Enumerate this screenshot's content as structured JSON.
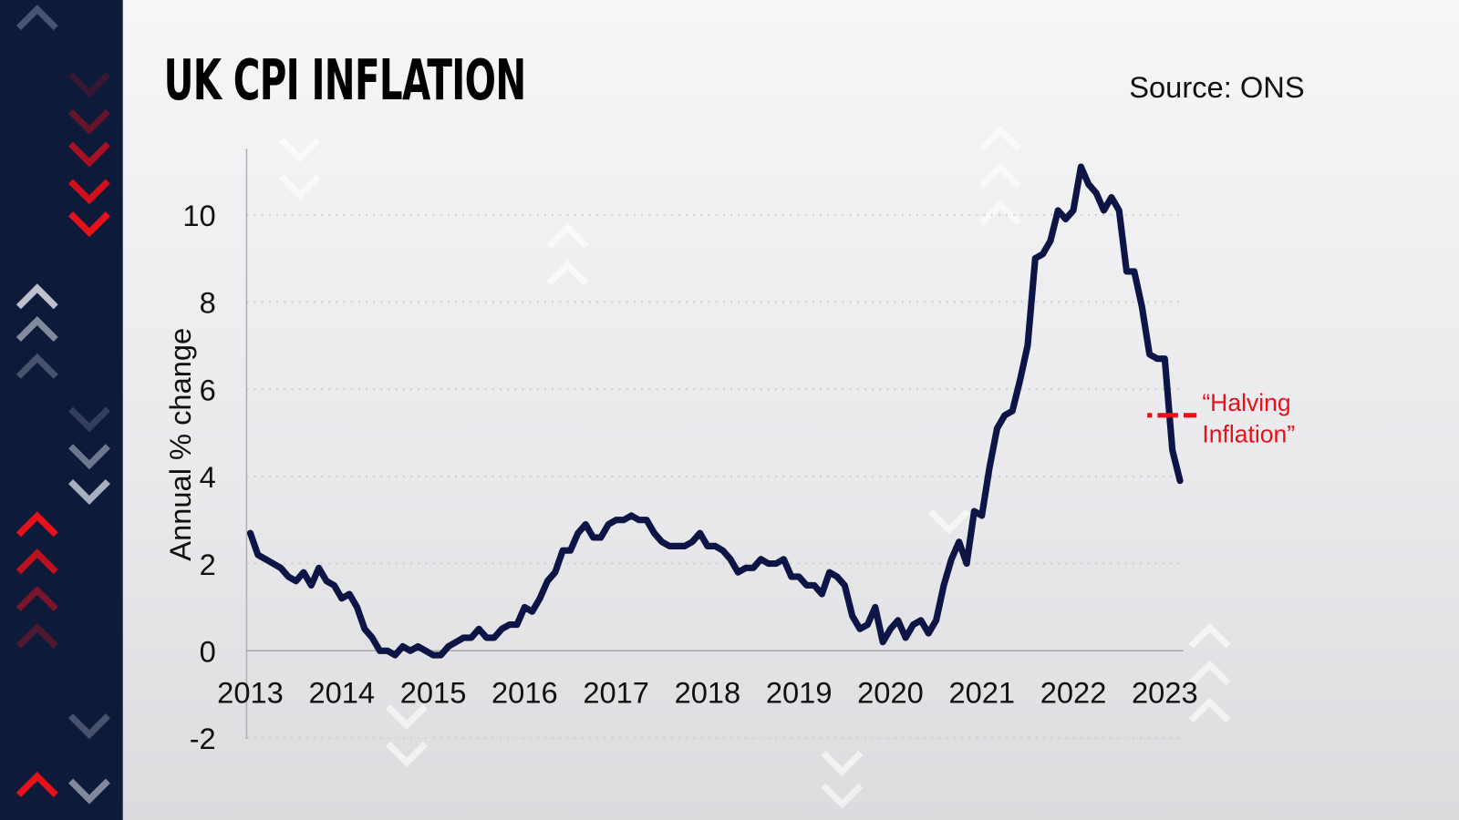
{
  "title": "UK CPI INFLATION",
  "source": "Source: ONS",
  "colors": {
    "line": "#0d1446",
    "annotation": "#e8101a",
    "sidebar": "#0d1a3a",
    "grid": "#c8c8cc"
  },
  "chart_data": {
    "type": "line",
    "title": "UK CPI INFLATION",
    "ylabel": "Annual % change",
    "xlabel": "",
    "ylim": [
      -2,
      11
    ],
    "yticks": [
      -2,
      0,
      2,
      4,
      6,
      8,
      10
    ],
    "xtick_labels": [
      "2013",
      "2014",
      "2015",
      "2016",
      "2017",
      "2018",
      "2019",
      "2020",
      "2021",
      "2022",
      "2023"
    ],
    "grid": "horizontal dotted",
    "x_start": "2013-09",
    "x_end": "2023-11",
    "x_step": "month",
    "values": [
      2.7,
      2.2,
      2.1,
      2.0,
      1.9,
      1.7,
      1.6,
      1.8,
      1.5,
      1.9,
      1.6,
      1.5,
      1.2,
      1.3,
      1.0,
      0.5,
      0.3,
      0.0,
      0.0,
      -0.1,
      0.1,
      0.0,
      0.1,
      0.0,
      -0.1,
      -0.1,
      0.1,
      0.2,
      0.3,
      0.3,
      0.5,
      0.3,
      0.3,
      0.5,
      0.6,
      0.6,
      1.0,
      0.9,
      1.2,
      1.6,
      1.8,
      2.3,
      2.3,
      2.7,
      2.9,
      2.6,
      2.6,
      2.9,
      3.0,
      3.0,
      3.1,
      3.0,
      3.0,
      2.7,
      2.5,
      2.4,
      2.4,
      2.4,
      2.5,
      2.7,
      2.4,
      2.4,
      2.3,
      2.1,
      1.8,
      1.9,
      1.9,
      2.1,
      2.0,
      2.0,
      2.1,
      1.7,
      1.7,
      1.5,
      1.5,
      1.3,
      1.8,
      1.7,
      1.5,
      0.8,
      0.5,
      0.6,
      1.0,
      0.2,
      0.5,
      0.7,
      0.3,
      0.6,
      0.7,
      0.4,
      0.7,
      1.5,
      2.1,
      2.5,
      2.0,
      3.2,
      3.1,
      4.2,
      5.1,
      5.4,
      5.5,
      6.2,
      7.0,
      9.0,
      9.1,
      9.4,
      10.1,
      9.9,
      10.1,
      11.1,
      10.7,
      10.5,
      10.1,
      10.4,
      10.1,
      8.7,
      8.7,
      7.9,
      6.8,
      6.7,
      6.7,
      4.6,
      3.9
    ],
    "annotation": {
      "label_line1": "“Halving",
      "label_line2": "Inflation”",
      "value": 5.4,
      "style": "red dashed"
    }
  }
}
